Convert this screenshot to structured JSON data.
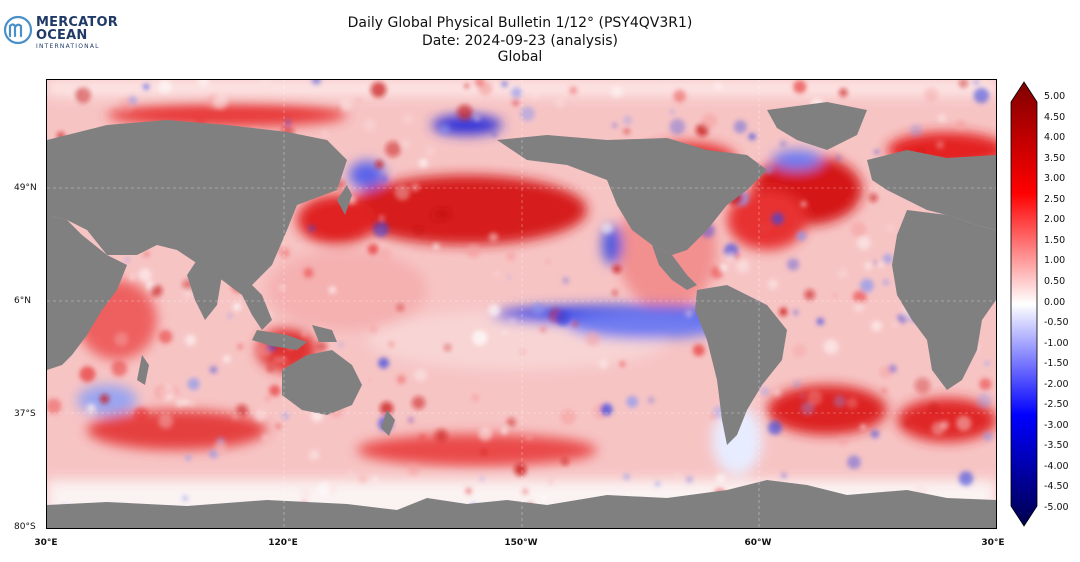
{
  "logo": {
    "line1": "MERCATOR",
    "line2": "OCEAN",
    "line3": "INTERNATIONAL",
    "brand_color": "#1f3a66",
    "mark_color": "#4a90c8"
  },
  "title": {
    "line1": "Daily Global Physical Bulletin 1/12° (PSY4QV3R1)",
    "line2": "Date: 2024-09-23 (analysis)",
    "line3": "Global"
  },
  "map": {
    "land_color": "#808080",
    "lat_labels": [
      "49°N",
      "6°N",
      "37°S",
      "80°S"
    ],
    "lon_labels": [
      "30°E",
      "120°E",
      "150°W",
      "60°W",
      "30°E"
    ]
  },
  "colorbar": {
    "colormap": "seismic",
    "min": -5.0,
    "max": 5.0,
    "tick_labels": [
      "5.00",
      "4.50",
      "4.00",
      "3.50",
      "3.00",
      "2.50",
      "2.00",
      "1.50",
      "1.00",
      "0.50",
      "0.00",
      "-0.50",
      "-1.00",
      "-1.50",
      "-2.00",
      "-2.50",
      "-3.00",
      "-3.50",
      "-4.00",
      "-4.50",
      "-5.00"
    ]
  }
}
